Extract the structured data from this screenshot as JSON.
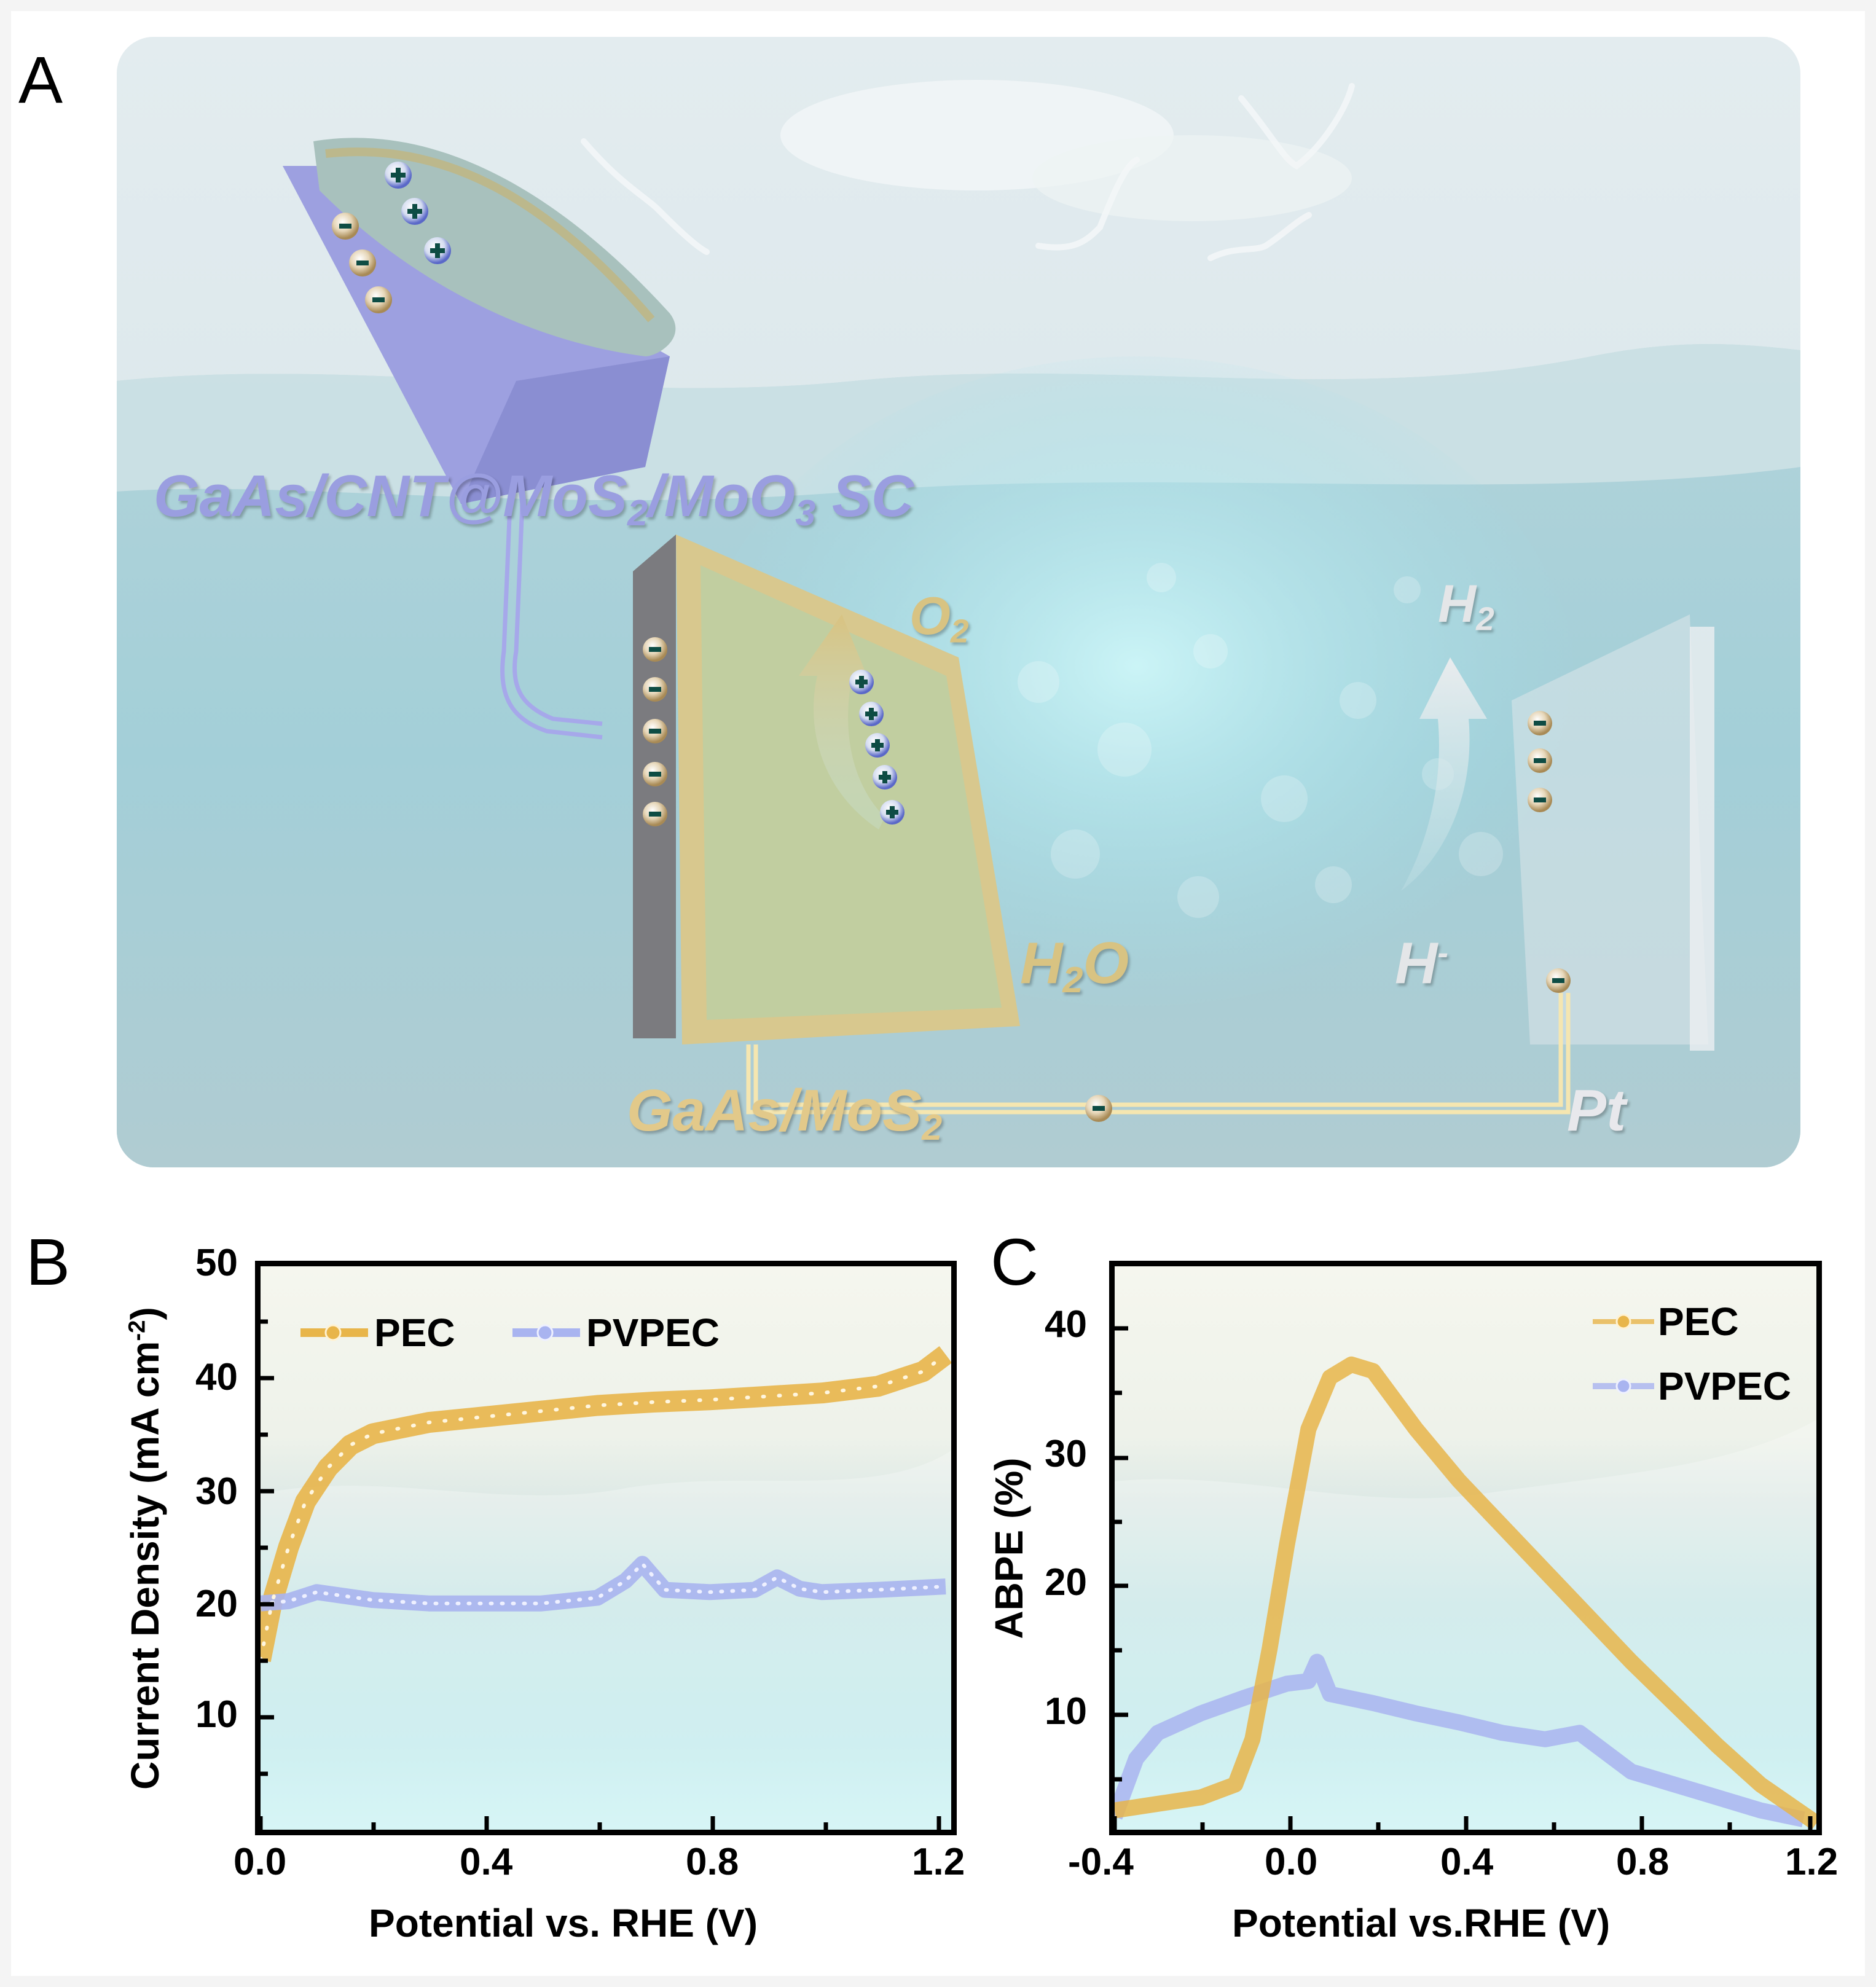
{
  "figure": {
    "panels": {
      "A": {
        "label": "A",
        "labels": {
          "solar_cell": "GaAs/CNT@MoS",
          "solar_cell_sub1": "2",
          "solar_cell_mid": "/MoO",
          "solar_cell_sub2": "3",
          "solar_cell_tail": " SC",
          "photoanode": "GaAs/MoS",
          "photoanode_sub": "2",
          "cathode": "Pt",
          "o2": "O",
          "o2_sub": "2",
          "h2": "H",
          "h2_sub": "2",
          "h2o": "H",
          "h2o_sub": "2",
          "h2o_tail": "O",
          "h_ion": "H",
          "h_ion_sup": "-"
        },
        "charges": {
          "plus_symbol": "+",
          "minus_symbol": "-"
        },
        "colors": {
          "solar_cell": "#9a9ee0",
          "photoanode": "#e2c98a",
          "cathode": "#e8e8ec",
          "wire_gold": "#f5e6b0",
          "wire_purple": "#a6a8ea"
        }
      },
      "B": {
        "label": "B"
      },
      "C": {
        "label": "C"
      }
    }
  },
  "chart_data": [
    {
      "panel": "B",
      "type": "line",
      "title": "",
      "xlabel": "Potential vs. RHE (V)",
      "ylabel": "Current Density (mA cm",
      "ylabel_sup": "-2",
      "ylabel_close": ")",
      "xlim": [
        0.0,
        1.23
      ],
      "ylim": [
        0,
        50
      ],
      "xticks": [
        "0.0",
        "0.4",
        "0.8",
        "1.2"
      ],
      "yticks": [
        "10",
        "20",
        "30",
        "40",
        "50"
      ],
      "grid": false,
      "legend_position": "top-left, horizontal",
      "series": [
        {
          "name": "PEC",
          "color": "#e8b54a",
          "x": [
            0.0,
            0.02,
            0.05,
            0.08,
            0.12,
            0.16,
            0.2,
            0.3,
            0.4,
            0.5,
            0.6,
            0.7,
            0.8,
            0.9,
            1.0,
            1.1,
            1.18,
            1.22
          ],
          "y": [
            15,
            20,
            25,
            29,
            32,
            34,
            35,
            36,
            36.5,
            37,
            37.5,
            37.8,
            38,
            38.3,
            38.6,
            39.2,
            40.5,
            42
          ]
        },
        {
          "name": "PVPEC",
          "color": "#a9b4f0",
          "x": [
            0.0,
            0.05,
            0.1,
            0.2,
            0.3,
            0.4,
            0.5,
            0.6,
            0.65,
            0.68,
            0.72,
            0.8,
            0.88,
            0.92,
            0.96,
            1.0,
            1.1,
            1.22
          ],
          "y": [
            20,
            20.2,
            21,
            20.3,
            20,
            20,
            20,
            20.5,
            22,
            23.5,
            21.2,
            21,
            21.2,
            22.3,
            21.3,
            21,
            21.2,
            21.5
          ]
        }
      ]
    },
    {
      "panel": "C",
      "type": "line",
      "title": "",
      "xlabel": "Potential vs.RHE (V)",
      "ylabel": "ABPE (%)",
      "xlim": [
        -0.4,
        1.23
      ],
      "ylim": [
        0,
        45
      ],
      "xticks": [
        "-0.4",
        "0.0",
        "0.4",
        "0.8",
        "1.2"
      ],
      "yticks": [
        "10",
        "20",
        "30",
        "40"
      ],
      "grid": false,
      "legend_position": "top-right, vertical",
      "series": [
        {
          "name": "PEC",
          "color": "#e8b54a",
          "x": [
            -0.4,
            -0.3,
            -0.2,
            -0.12,
            -0.08,
            -0.04,
            0.0,
            0.05,
            0.1,
            0.15,
            0.2,
            0.3,
            0.4,
            0.6,
            0.8,
            1.0,
            1.1,
            1.23
          ],
          "y": [
            1.5,
            2,
            2.5,
            3.5,
            7,
            14,
            22,
            31,
            35,
            36,
            35.5,
            31,
            27,
            20,
            13,
            6.5,
            3.5,
            0.5
          ]
        },
        {
          "name": "PVPEC",
          "color": "#a9b4f0",
          "x": [
            -0.4,
            -0.35,
            -0.3,
            -0.2,
            -0.1,
            0.0,
            0.05,
            0.07,
            0.1,
            0.2,
            0.3,
            0.4,
            0.5,
            0.6,
            0.68,
            0.72,
            0.8,
            0.9,
            1.0,
            1.1,
            1.2
          ],
          "y": [
            1,
            5.5,
            7.5,
            9,
            10.2,
            11.3,
            11.5,
            13,
            10.5,
            9.8,
            9,
            8.3,
            7.5,
            7,
            7.5,
            6.5,
            4.5,
            3.5,
            2.5,
            1.5,
            0.8
          ]
        }
      ]
    }
  ]
}
